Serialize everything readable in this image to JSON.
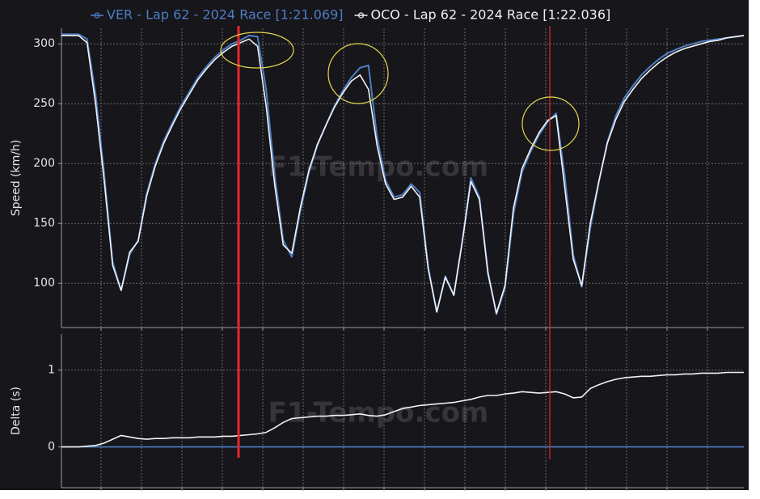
{
  "chart_data": [
    {
      "type": "line",
      "y_label": "Speed (km/h)",
      "watermark": "F1-Tempo.com",
      "ylim": [
        63,
        313
      ],
      "yticks": [
        100,
        150,
        200,
        250,
        300
      ],
      "grid": true,
      "legend": "top",
      "series": [
        {
          "name": "VER - Lap 62 - 2024 Race [1:21.069]",
          "color": "#4f7ec4",
          "values": [
            308,
            308,
            308,
            304,
            258,
            192,
            118,
            94,
            124,
            136,
            175,
            200,
            219,
            234,
            248,
            260,
            272,
            281,
            289,
            295,
            300,
            303,
            307,
            306,
            262,
            190,
            136,
            122,
            160,
            192,
            215,
            232,
            248,
            261,
            272,
            280,
            282,
            222,
            186,
            172,
            174,
            183,
            176,
            114,
            76,
            106,
            90,
            136,
            188,
            172,
            110,
            74,
            96,
            158,
            193,
            210,
            224,
            235,
            242,
            190,
            124,
            97,
            146,
            184,
            218,
            240,
            255,
            265,
            274,
            281,
            287,
            292,
            295,
            298,
            300,
            302,
            303,
            304,
            305,
            306,
            307
          ]
        },
        {
          "name": "OCO - Lap 62 - 2024 Race [1:22.036]",
          "color": "#f2f2f2",
          "values": [
            307,
            307,
            307,
            301,
            250,
            186,
            115,
            94,
            126,
            135,
            173,
            198,
            217,
            232,
            246,
            258,
            270,
            279,
            287,
            293,
            298,
            301,
            304,
            298,
            248,
            182,
            132,
            125,
            163,
            194,
            216,
            232,
            247,
            259,
            269,
            274,
            262,
            215,
            183,
            170,
            172,
            181,
            172,
            112,
            76,
            105,
            90,
            135,
            185,
            170,
            108,
            75,
            98,
            163,
            196,
            212,
            226,
            236,
            240,
            180,
            120,
            98,
            150,
            185,
            217,
            237,
            252,
            262,
            271,
            278,
            284,
            289,
            293,
            296,
            298,
            300,
            302,
            303,
            305,
            306,
            307
          ]
        }
      ]
    },
    {
      "type": "line",
      "y_label": "Delta (s)",
      "watermark": "F1-Tempo.com",
      "ylim": [
        -0.53,
        1.47
      ],
      "yticks": [
        0,
        1
      ],
      "grid": true,
      "series": [
        {
          "color": "#4f7ec4",
          "values": [
            0,
            0,
            0,
            0,
            0,
            0,
            0,
            0,
            0,
            0,
            0,
            0,
            0,
            0,
            0,
            0,
            0,
            0,
            0,
            0,
            0,
            0,
            0,
            0,
            0,
            0,
            0,
            0,
            0,
            0,
            0,
            0,
            0,
            0,
            0,
            0,
            0,
            0,
            0,
            0,
            0,
            0,
            0,
            0,
            0,
            0,
            0,
            0,
            0,
            0,
            0,
            0,
            0,
            0,
            0,
            0,
            0,
            0,
            0,
            0,
            0,
            0,
            0,
            0,
            0,
            0,
            0,
            0,
            0,
            0,
            0,
            0,
            0,
            0,
            0,
            0,
            0,
            0,
            0,
            0,
            0
          ]
        },
        {
          "color": "#f2f2f2",
          "values": [
            0,
            0,
            0,
            0.01,
            0.02,
            0.05,
            0.1,
            0.15,
            0.13,
            0.11,
            0.1,
            0.11,
            0.11,
            0.12,
            0.12,
            0.12,
            0.13,
            0.13,
            0.13,
            0.14,
            0.14,
            0.15,
            0.16,
            0.17,
            0.19,
            0.25,
            0.32,
            0.37,
            0.38,
            0.39,
            0.4,
            0.4,
            0.41,
            0.41,
            0.42,
            0.43,
            0.41,
            0.4,
            0.42,
            0.46,
            0.5,
            0.52,
            0.54,
            0.55,
            0.56,
            0.57,
            0.58,
            0.6,
            0.62,
            0.65,
            0.67,
            0.67,
            0.69,
            0.7,
            0.72,
            0.71,
            0.7,
            0.71,
            0.72,
            0.69,
            0.64,
            0.65,
            0.76,
            0.81,
            0.85,
            0.88,
            0.9,
            0.91,
            0.92,
            0.92,
            0.93,
            0.94,
            0.94,
            0.95,
            0.95,
            0.96,
            0.96,
            0.96,
            0.97,
            0.97,
            0.97
          ]
        }
      ]
    }
  ]
}
